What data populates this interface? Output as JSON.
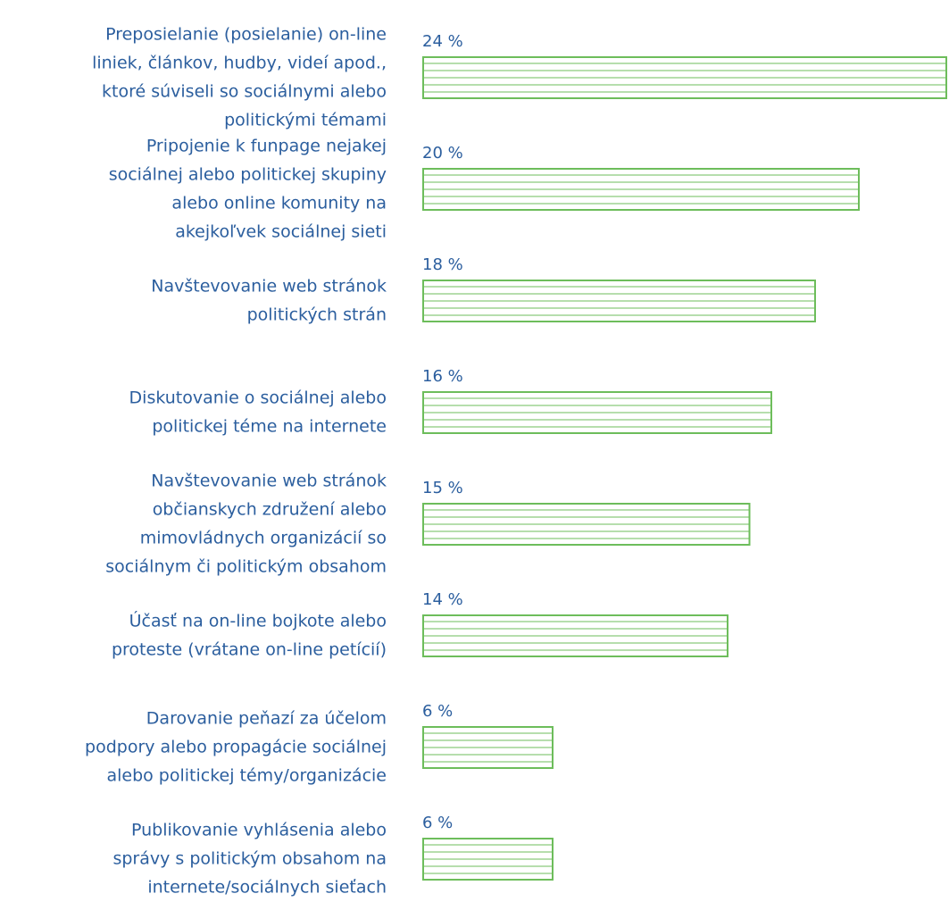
{
  "chart_data": {
    "type": "bar",
    "orientation": "horizontal",
    "color": "#6dbd5b",
    "categories": [
      "Preposielanie (posielanie) on-line\nliniek, článkov, hudby, videí apod.,\nktoré súviseli so sociálnymi alebo\npolitickými témami",
      "Pripojenie k funpage nejakej\nsociálnej alebo politickej skupiny\nalebo online komunity na\nakejkoľvek sociálnej sieti",
      "Navštevovanie web stránok\npolitických strán",
      "Diskutovanie o sociálnej alebo\npolitickej téme na internete",
      "Navštevovanie web stránok\nobčianskych združení alebo\nmimovládnych organizácií so\nsociálnym či politickým obsahom",
      "Účasť na on-line bojkote alebo\nproteste (vrátane on-line petícií)",
      "Darovanie peňazí za účelom\npodpory alebo propagácie sociálnej\nalebo politickej témy/organizácie",
      "Publikovanie vyhlásenia alebo\nsprávy s politickým obsahom na\ninternete/sociálnych sieťach"
    ],
    "values": [
      24,
      20,
      18,
      16,
      15,
      14,
      6,
      6
    ],
    "value_labels": [
      "24 %",
      "20 %",
      "18 %",
      "16 %",
      "15 %",
      "14 %",
      "6 %",
      "6 %"
    ]
  }
}
